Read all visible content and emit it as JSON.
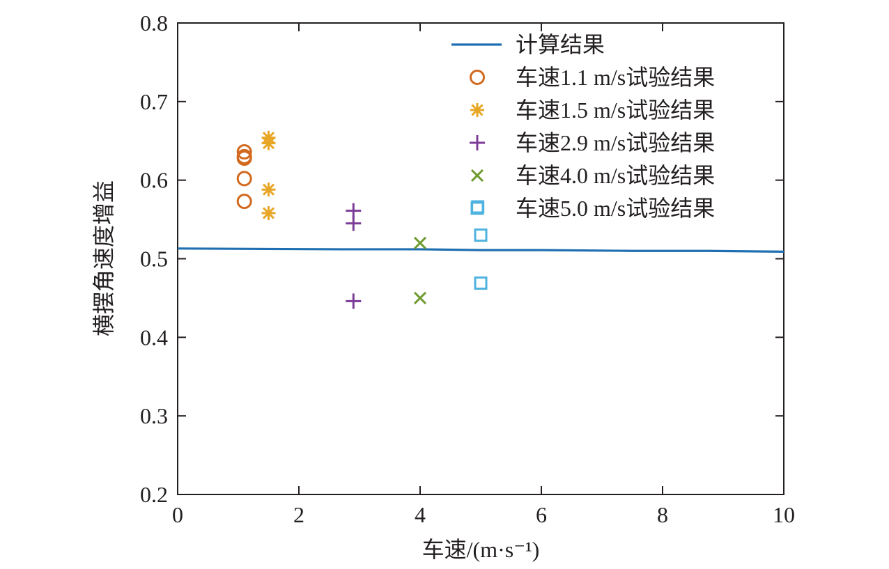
{
  "chart_data": {
    "type": "scatter",
    "xlabel": "车速/(m·s⁻¹)",
    "ylabel": "横摆角速度增益",
    "xlim": [
      0,
      10
    ],
    "ylim": [
      0.2,
      0.8
    ],
    "xticks": [
      0,
      2,
      4,
      6,
      8,
      10
    ],
    "yticks": [
      0.2,
      0.3,
      0.4,
      0.5,
      0.6,
      0.7,
      0.8
    ],
    "xtick_labels": [
      "0",
      "2",
      "4",
      "6",
      "8",
      "10"
    ],
    "ytick_labels": [
      "0.2",
      "0.3",
      "0.4",
      "0.5",
      "0.6",
      "0.7",
      "0.8"
    ],
    "grid": false,
    "legend_position": "top-right",
    "series": [
      {
        "name": "计算结果",
        "kind": "line",
        "color": "#1f6fb2",
        "x": [
          0,
          2.7,
          4.0,
          5.0,
          6.0,
          7.5,
          8.7,
          10
        ],
        "y": [
          0.513,
          0.512,
          0.512,
          0.511,
          0.511,
          0.51,
          0.51,
          0.509
        ]
      },
      {
        "name": "车速1.1 m/s试验结果",
        "kind": "scatter",
        "marker": "circle",
        "color": "#d2691e",
        "x": [
          1.1,
          1.1,
          1.1,
          1.1,
          1.1
        ],
        "y": [
          0.636,
          0.63,
          0.628,
          0.602,
          0.573
        ]
      },
      {
        "name": "车速1.5 m/s试验结果",
        "kind": "scatter",
        "marker": "asterisk",
        "color": "#e8a626",
        "x": [
          1.5,
          1.5,
          1.5,
          1.5
        ],
        "y": [
          0.654,
          0.647,
          0.588,
          0.558
        ]
      },
      {
        "name": "车速2.9 m/s试验结果",
        "kind": "scatter",
        "marker": "plus",
        "color": "#7d3c98",
        "x": [
          2.9,
          2.9,
          2.9
        ],
        "y": [
          0.561,
          0.545,
          0.446
        ]
      },
      {
        "name": "车速4.0 m/s试验结果",
        "kind": "scatter",
        "marker": "x",
        "color": "#6e9a2f",
        "x": [
          4.0,
          4.0
        ],
        "y": [
          0.52,
          0.45
        ]
      },
      {
        "name": "车速5.0 m/s试验结果",
        "kind": "scatter",
        "marker": "square",
        "color": "#4fb3e0",
        "x": [
          4.95,
          5.0,
          5.0
        ],
        "y": [
          0.566,
          0.53,
          0.469
        ]
      }
    ]
  }
}
